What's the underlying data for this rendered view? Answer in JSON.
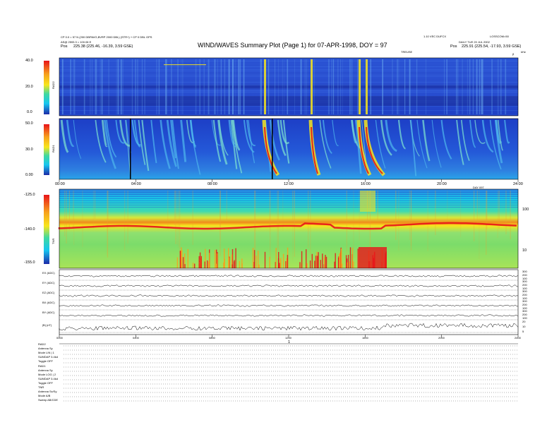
{
  "header": {
    "title": "WIND/WAVES Summary Plot (Page 1) for 07-APR-1998, DOY = 97",
    "left_line1": "CP 0.0 = 57 N (200 DBPAVG,BVRP 2000 DBL) (STR+) + CP 0 DBL GPS",
    "left_line2": "AS@ 2593.3 = 100.06 E",
    "left_line3_label": "Pos",
    "left_line3_value": "225.38 (225.46, -16.39, 3.59 GSE)",
    "right_line1a": "1.10 VEC DUFCX",
    "right_line1b": "LOSSCOM=50",
    "right_line2": "DAILY TUE 20 JUL 2002",
    "right_line3_label": "Pos",
    "right_line3_value": "225.91 (225.54, -17.93, 3.59 GSE)",
    "tr_scale": "TREUSE",
    "tr_top_unit": "kHz",
    "tr_top_mark": "β"
  },
  "rad2": {
    "label": "RAD2",
    "ticks": [
      "40.0",
      "20.0",
      "0.0"
    ]
  },
  "rad1": {
    "label": "RAD1",
    "ticks": [
      "50.0",
      "30.0",
      "0.00"
    ]
  },
  "tnr": {
    "label": "TNR",
    "ticks": [
      "-125.0",
      "-140.0",
      "-155.0"
    ],
    "right_ticks": [
      "100",
      "10"
    ],
    "day_label": "DAY 097"
  },
  "time_axis_top": [
    "00:00",
    "04:00",
    "08:00",
    "12:00",
    "16:00",
    "20:00",
    "24:00"
  ],
  "time_axis_bottom": [
    "0000",
    "0400",
    "0800",
    "1200",
    "1600",
    "2000",
    "2400"
  ],
  "bottom_page_mark": "1",
  "strip_panels": [
    {
      "label": "EX (ADC)",
      "ticks": [
        "300",
        "200",
        "100"
      ]
    },
    {
      "label": "EY (ADC)",
      "ticks": [
        "300",
        "200",
        "100"
      ]
    },
    {
      "label": "EZ (ADC)",
      "ticks": [
        "300",
        "200",
        "100"
      ]
    },
    {
      "label": "BX (ADC)",
      "ticks": [
        "300",
        "200",
        "100"
      ]
    },
    {
      "label": "BY (ADC)",
      "ticks": [
        "300",
        "200",
        "100"
      ]
    },
    {
      "label": "|B| (nT)",
      "ticks": [
        "20",
        "10",
        "5"
      ]
    }
  ],
  "footer": {
    "rad2_title": "RAD2",
    "rad2_rows": [
      "Antenna   Sy",
      "Mode   LIN | 1",
      "SUMDAP 3.4kd",
      "Toggle   OFF"
    ],
    "rad1_title": "RAD1",
    "rad1_rows": [
      "Antenna   Sy",
      "Mode   LOG | 2",
      "SUMDAP 3.4kd",
      "Toggle   OFF"
    ],
    "tnr_title": "TNR",
    "tnr_rows": [
      "Antenna   Sx/Sy",
      "Mode   A/B",
      "Sweep   AB/CDE"
    ]
  },
  "colors": {
    "scale_top": "#e8141a",
    "scale_mid_high": "#f7e51c",
    "scale_mid": "#3fd9a0",
    "scale_low": "#16c6f0",
    "scale_bottom": "#1c2aa8"
  }
}
